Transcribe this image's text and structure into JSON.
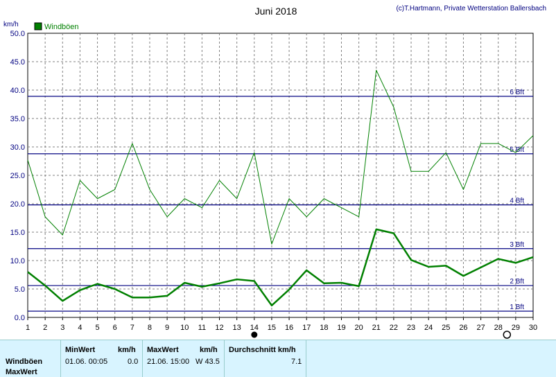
{
  "chart_data": {
    "type": "line",
    "title": "Juni 2018",
    "credit": "(c)T.Hartmann, Private Wetterstation Ballersbach",
    "ylabel": "km/h",
    "ylim": [
      0,
      50
    ],
    "yticks": [
      "0.0",
      "5.0",
      "10.0",
      "15.0",
      "20.0",
      "25.0",
      "30.0",
      "35.0",
      "40.0",
      "45.0",
      "50.0"
    ],
    "xlim": [
      1,
      30
    ],
    "x": [
      1,
      2,
      3,
      4,
      5,
      6,
      7,
      8,
      9,
      10,
      11,
      12,
      13,
      14,
      15,
      16,
      17,
      18,
      19,
      20,
      21,
      22,
      23,
      24,
      25,
      26,
      27,
      28,
      29,
      30
    ],
    "legend": {
      "label": "Windböen",
      "placement": "top-left",
      "color": "#008000"
    },
    "series": [
      {
        "name": "Windböen",
        "color": "#008000",
        "values": [
          27.7,
          17.7,
          14.5,
          24.1,
          20.9,
          22.5,
          30.6,
          22.5,
          17.7,
          20.9,
          19.3,
          24.1,
          20.9,
          29.0,
          12.9,
          20.9,
          17.7,
          20.9,
          19.3,
          17.7,
          43.5,
          37.0,
          25.7,
          25.7,
          29.0,
          22.5,
          30.6,
          30.6,
          29.0,
          32.0
        ]
      },
      {
        "color": "#008000",
        "values": [
          8.0,
          5.6,
          2.9,
          4.8,
          5.9,
          5.0,
          3.5,
          3.5,
          3.8,
          6.1,
          5.4,
          6.0,
          6.7,
          6.4,
          2.1,
          4.9,
          8.3,
          6.0,
          6.1,
          5.5,
          15.5,
          14.8,
          10.1,
          8.9,
          9.1,
          7.3,
          8.8,
          10.3,
          9.6,
          10.6
        ]
      }
    ],
    "beaufort": [
      {
        "label": "1 Bft",
        "value": 1.1
      },
      {
        "label": "2 Bft",
        "value": 5.6
      },
      {
        "label": "3 Bft",
        "value": 12.1
      },
      {
        "label": "4 Bft",
        "value": 19.8
      },
      {
        "label": "5 Bft",
        "value": 28.8
      },
      {
        "label": "6 Bft",
        "value": 38.9
      }
    ],
    "markers": [
      {
        "x": 14,
        "style": "filled"
      },
      {
        "x": 28.5,
        "style": "open"
      }
    ],
    "colors": {
      "grid": "#808080",
      "beaufort": "#000080",
      "line": "#008000"
    }
  },
  "stats": {
    "row_label_1": "Windböen",
    "row_label_2": "MaxWert",
    "min_header": "MinWert",
    "min_unit": "km/h",
    "min_time": "01.06.  00:05",
    "min_value": "0.0",
    "max_header": "MaxWert",
    "max_unit": "km/h",
    "max_time": "21.06.  15:00",
    "max_value": "W 43.5",
    "avg_header": "Durchschnitt km/h",
    "avg_value": "7.1"
  }
}
